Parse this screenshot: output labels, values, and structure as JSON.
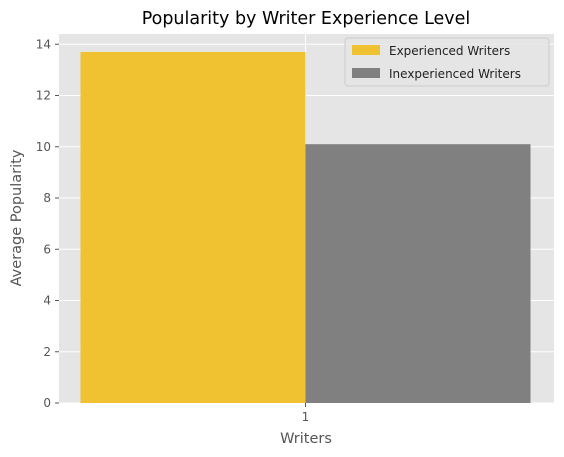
{
  "chart_data": {
    "type": "bar",
    "title": "Popularity by Writer Experience Level",
    "xlabel": "Writers",
    "ylabel": "Average Popularity",
    "categories": [
      "1"
    ],
    "series": [
      {
        "name": "Experienced Writers",
        "values": [
          13.7
        ],
        "color": "#f0c232"
      },
      {
        "name": "Inexperienced Writers",
        "values": [
          10.1
        ],
        "color": "#808080"
      }
    ],
    "ylim": [
      0,
      14.4
    ],
    "yticks": [
      "0",
      "2",
      "4",
      "6",
      "8",
      "10",
      "12",
      "14"
    ],
    "grid": true,
    "legend": "top-right",
    "plot_background": "#e5e5e5",
    "grid_color": "#ffffff"
  }
}
